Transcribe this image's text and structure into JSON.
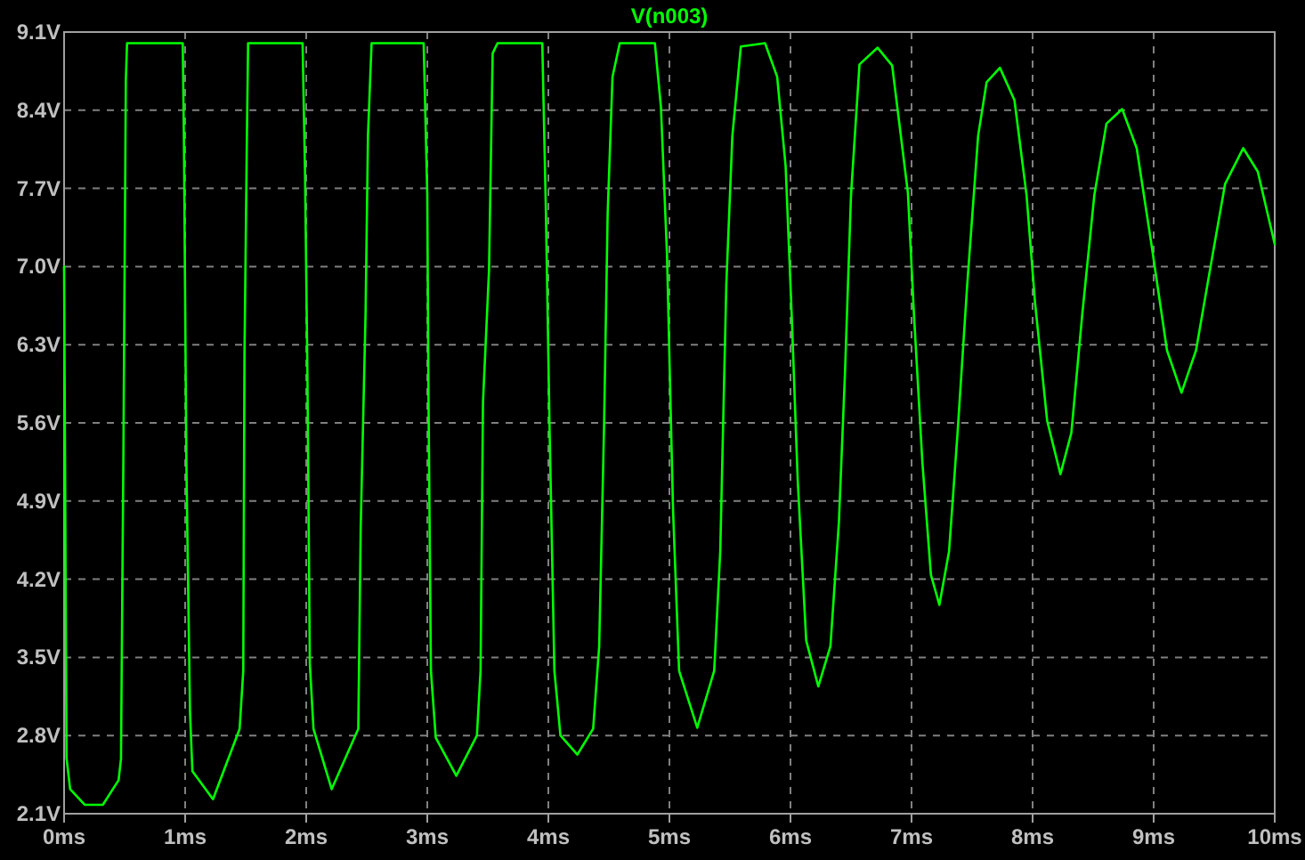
{
  "chart_data": {
    "type": "line",
    "xlim": [
      0,
      10
    ],
    "ylim": [
      2.1,
      9.1
    ],
    "xticks": [
      {
        "value": 0,
        "label": "0ms"
      },
      {
        "value": 1,
        "label": "1ms"
      },
      {
        "value": 2,
        "label": "2ms"
      },
      {
        "value": 3,
        "label": "3ms"
      },
      {
        "value": 4,
        "label": "4ms"
      },
      {
        "value": 5,
        "label": "5ms"
      },
      {
        "value": 6,
        "label": "6ms"
      },
      {
        "value": 7,
        "label": "7ms"
      },
      {
        "value": 8,
        "label": "8ms"
      },
      {
        "value": 9,
        "label": "9ms"
      },
      {
        "value": 10,
        "label": "10ms"
      }
    ],
    "yticks": [
      {
        "value": 2.1,
        "label": "2.1V"
      },
      {
        "value": 2.8,
        "label": "2.8V"
      },
      {
        "value": 3.5,
        "label": "3.5V"
      },
      {
        "value": 4.2,
        "label": "4.2V"
      },
      {
        "value": 4.9,
        "label": "4.9V"
      },
      {
        "value": 5.6,
        "label": "5.6V"
      },
      {
        "value": 6.3,
        "label": "6.3V"
      },
      {
        "value": 7.0,
        "label": "7.0V"
      },
      {
        "value": 7.7,
        "label": "7.7V"
      },
      {
        "value": 8.4,
        "label": "8.4V"
      },
      {
        "value": 9.1,
        "label": "9.1V"
      }
    ],
    "grid": true,
    "legend": "top",
    "marker": "none",
    "line_style": "solid",
    "series": [
      {
        "name": "V(n003)",
        "color": "#00ff00",
        "x": [
          0,
          0.02,
          0.05,
          0.17,
          0.32,
          0.45,
          0.47,
          0.49,
          0.51,
          0.52,
          0.98,
          0.99,
          1.01,
          1.04,
          1.06,
          1.23,
          1.45,
          1.48,
          1.49,
          1.51,
          1.52,
          1.97,
          1.99,
          2.01,
          2.03,
          2.06,
          2.21,
          2.43,
          2.45,
          2.49,
          2.51,
          2.54,
          2.97,
          3.0,
          3.01,
          3.03,
          3.07,
          3.24,
          3.41,
          3.44,
          3.46,
          3.51,
          3.54,
          3.58,
          3.95,
          3.98,
          4.01,
          4.05,
          4.1,
          4.24,
          4.37,
          4.42,
          4.46,
          4.49,
          4.53,
          4.59,
          4.88,
          4.93,
          4.98,
          5.03,
          5.08,
          5.23,
          5.37,
          5.42,
          5.47,
          5.52,
          5.59,
          5.79,
          5.89,
          5.96,
          6.01,
          6.06,
          6.13,
          6.23,
          6.33,
          6.4,
          6.45,
          6.5,
          6.57,
          6.72,
          6.84,
          6.97,
          7.02,
          7.09,
          7.16,
          7.23,
          7.31,
          7.38,
          7.46,
          7.55,
          7.62,
          7.73,
          7.85,
          7.95,
          8.02,
          8.12,
          8.23,
          8.32,
          8.41,
          8.51,
          8.61,
          8.74,
          8.86,
          8.98,
          9.11,
          9.23,
          9.35,
          9.47,
          9.59,
          9.74,
          9.86,
          10
        ],
        "values": [
          7.0,
          2.6,
          2.32,
          2.18,
          2.18,
          2.4,
          2.59,
          5.33,
          8.67,
          9.0,
          9.0,
          8.12,
          5.24,
          3.01,
          2.48,
          2.23,
          2.86,
          3.38,
          6.2,
          8.17,
          9.0,
          9.0,
          7.85,
          6.04,
          3.44,
          2.86,
          2.32,
          2.86,
          4.66,
          6.57,
          8.17,
          9.0,
          9.0,
          7.64,
          5.83,
          3.38,
          2.78,
          2.44,
          2.8,
          3.38,
          5.78,
          6.97,
          8.91,
          9.0,
          9.0,
          7.48,
          5.56,
          3.38,
          2.8,
          2.63,
          2.86,
          3.6,
          5.56,
          7.48,
          8.7,
          9.0,
          9.0,
          8.43,
          7.11,
          4.82,
          3.38,
          2.87,
          3.38,
          4.45,
          6.84,
          8.17,
          8.97,
          9.0,
          8.7,
          7.9,
          6.57,
          5.08,
          3.65,
          3.24,
          3.6,
          4.71,
          6.04,
          7.64,
          8.81,
          8.96,
          8.8,
          7.66,
          6.57,
          5.24,
          4.24,
          3.97,
          4.45,
          5.51,
          6.84,
          8.17,
          8.65,
          8.78,
          8.49,
          7.64,
          6.68,
          5.62,
          5.14,
          5.51,
          6.57,
          7.64,
          8.28,
          8.41,
          8.06,
          7.21,
          6.25,
          5.87,
          6.25,
          7.0,
          7.74,
          8.06,
          7.85,
          7.2
        ]
      }
    ]
  }
}
